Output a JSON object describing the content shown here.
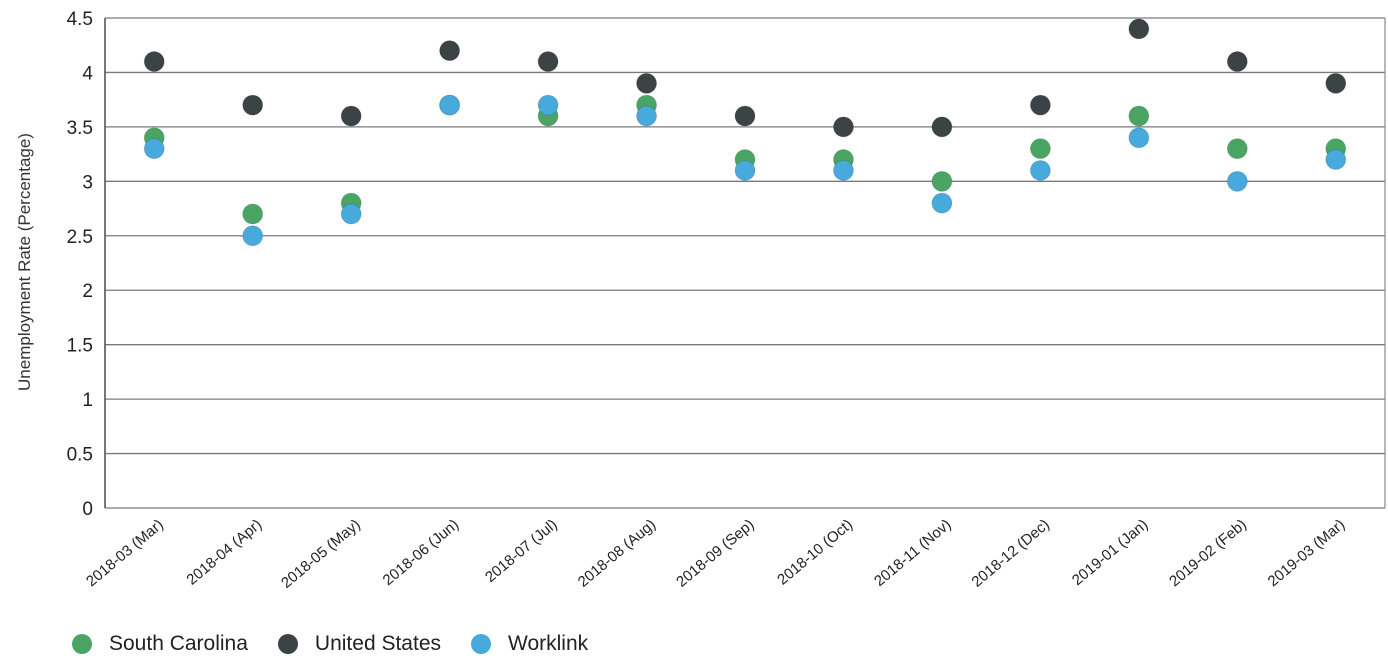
{
  "chart_data": {
    "type": "scatter",
    "title": "",
    "xlabel": "",
    "ylabel": "Unemployment Rate (Percentage)",
    "ylim": [
      0,
      4.5
    ],
    "yticks": [
      "0",
      "0.5",
      "1",
      "1.5",
      "2",
      "2.5",
      "3",
      "3.5",
      "4",
      "4.5"
    ],
    "grid": true,
    "legend_position": "bottom-left",
    "categories": [
      "2018-03 (Mar)",
      "2018-04 (Apr)",
      "2018-05 (May)",
      "2018-06 (Jun)",
      "2018-07 (Jul)",
      "2018-08 (Aug)",
      "2018-09 (Sep)",
      "2018-10 (Oct)",
      "2018-11 (Nov)",
      "2018-12 (Dec)",
      "2019-01 (Jan)",
      "2019-02 (Feb)",
      "2019-03 (Mar)"
    ],
    "series": [
      {
        "name": "South Carolina",
        "color": "#4aa564",
        "values": [
          3.4,
          2.7,
          2.8,
          3.7,
          3.6,
          3.7,
          3.2,
          3.2,
          3.0,
          3.3,
          3.6,
          3.3,
          3.3
        ]
      },
      {
        "name": "United States",
        "color": "#3c4345",
        "values": [
          4.1,
          3.7,
          3.6,
          4.2,
          4.1,
          3.9,
          3.6,
          3.5,
          3.5,
          3.7,
          4.4,
          4.1,
          3.9
        ]
      },
      {
        "name": "Worklink",
        "color": "#47a9dc",
        "values": [
          3.3,
          2.5,
          2.7,
          3.7,
          3.7,
          3.6,
          3.1,
          3.1,
          2.8,
          3.1,
          3.4,
          3.0,
          3.2
        ]
      }
    ]
  }
}
